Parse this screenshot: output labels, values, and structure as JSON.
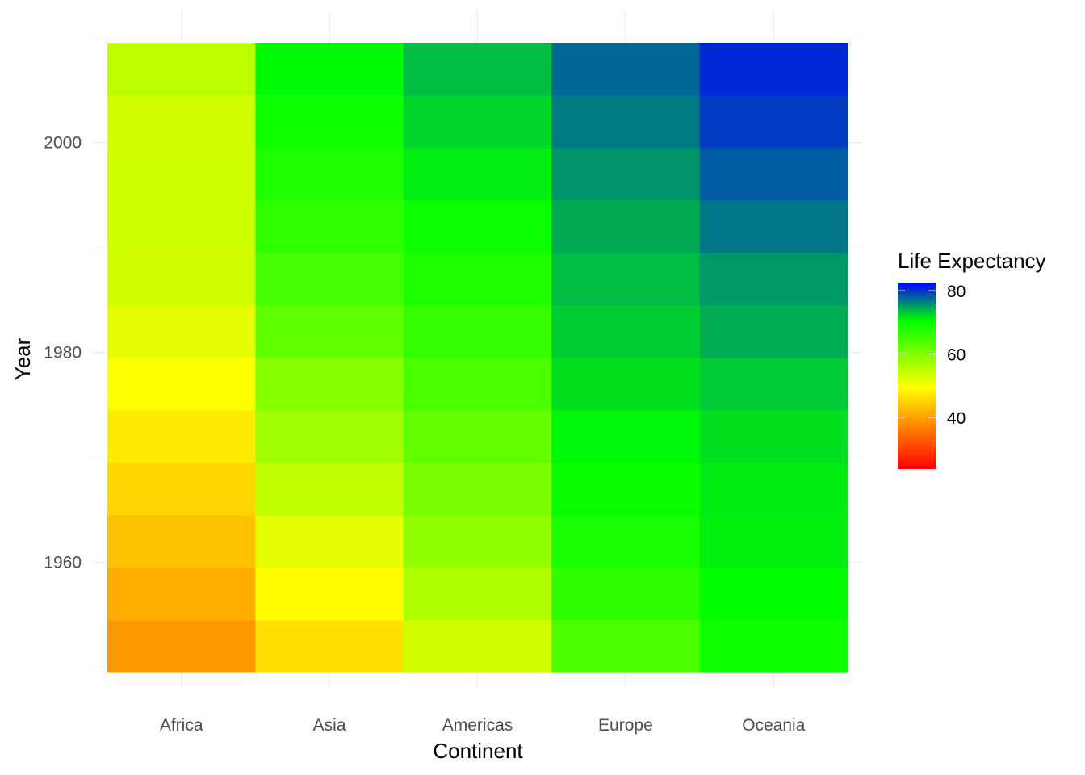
{
  "chart_data": {
    "type": "heatmap",
    "title": "",
    "xlabel": "Continent",
    "ylabel": "Year",
    "x": [
      "Africa",
      "Asia",
      "Americas",
      "Europe",
      "Oceania"
    ],
    "y": [
      1952,
      1957,
      1962,
      1967,
      1972,
      1977,
      1982,
      1987,
      1992,
      1997,
      2002,
      2007
    ],
    "y_ticks": [
      1960,
      1980,
      2000
    ],
    "ylim": [
      1949.5,
      2009.5
    ],
    "values": [
      [
        39.1,
        41.3,
        43.3,
        45.3,
        47.5,
        49.6,
        51.6,
        53.3,
        53.6,
        53.6,
        53.3,
        54.8
      ],
      [
        46.3,
        49.3,
        51.6,
        54.7,
        57.3,
        59.6,
        62.6,
        64.9,
        66.5,
        68.0,
        69.2,
        70.7
      ],
      [
        53.3,
        56.1,
        58.4,
        60.4,
        62.4,
        64.4,
        66.2,
        68.1,
        69.6,
        71.2,
        72.4,
        73.6
      ],
      [
        64.4,
        66.7,
        68.5,
        69.7,
        70.8,
        71.9,
        72.8,
        73.6,
        74.4,
        75.5,
        76.7,
        77.6
      ],
      [
        69.3,
        70.3,
        71.1,
        71.3,
        71.9,
        72.9,
        74.3,
        75.3,
        76.9,
        78.2,
        79.7,
        80.7
      ]
    ],
    "legend": {
      "title": "Life Expectancy",
      "position": "right",
      "ticks": [
        40,
        60,
        80
      ],
      "range": [
        23.6,
        82.6
      ]
    },
    "color_scale": {
      "stops": [
        {
          "value": 23.6,
          "color": "#ff0000"
        },
        {
          "value": 49.5,
          "color": "#ffff00"
        },
        {
          "value": 70.4,
          "color": "#00ff00"
        },
        {
          "value": 82.6,
          "color": "#0000ff"
        }
      ]
    },
    "grid": true
  }
}
